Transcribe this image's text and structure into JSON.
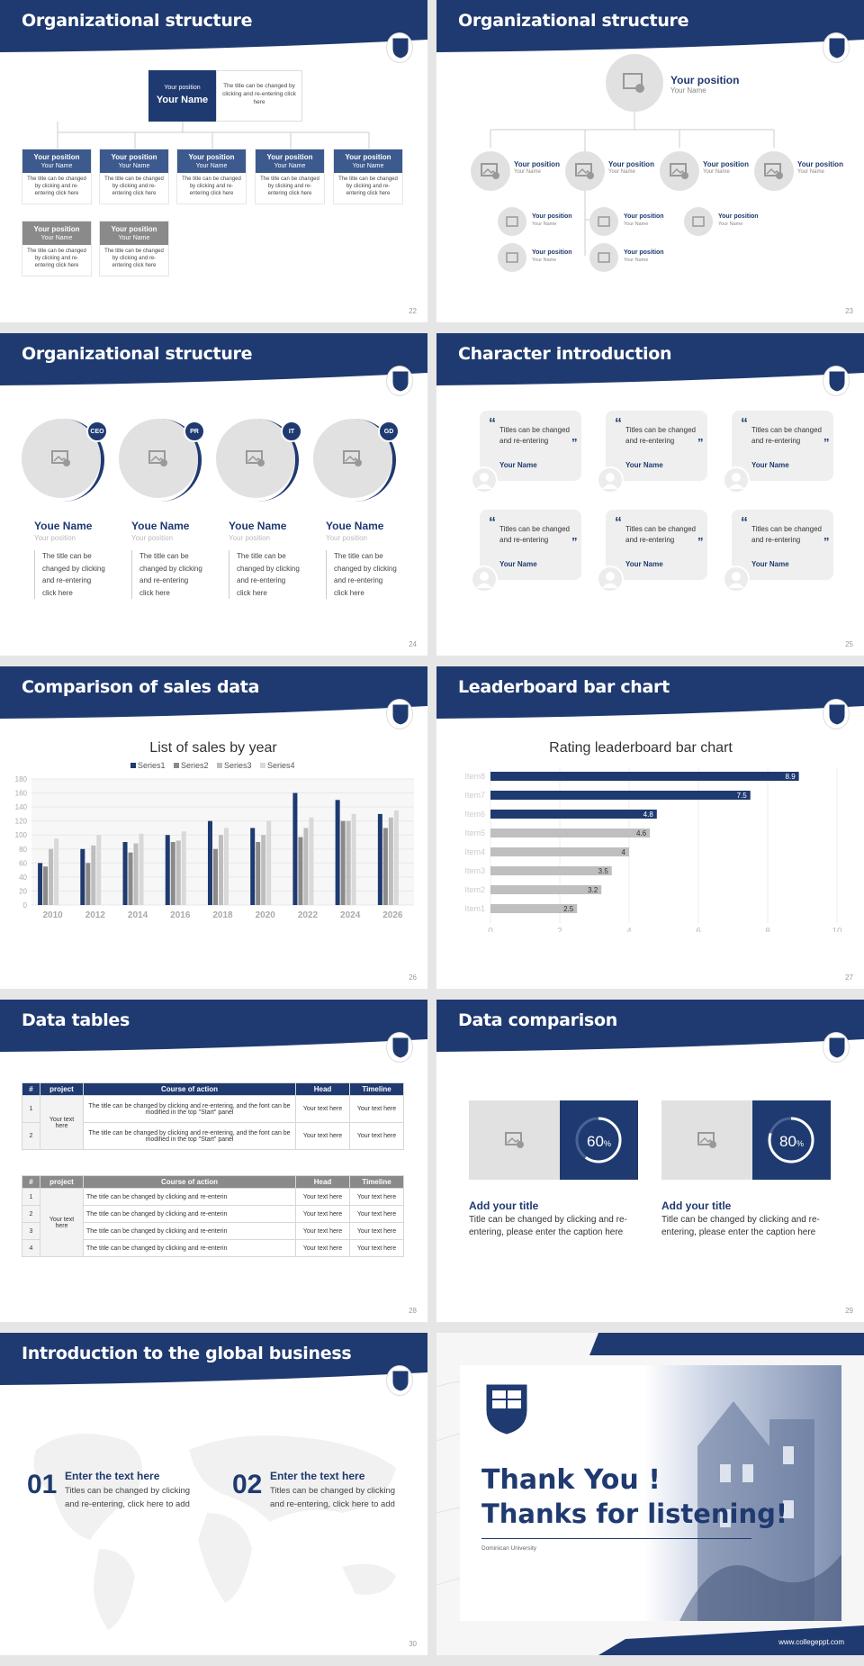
{
  "org1": {
    "title": "Organizational structure",
    "top_position": "Your position",
    "top_name": "Your Name",
    "top_desc": "The title can be changed by clicking and re-entering click here",
    "position": "Your position",
    "name": "Your Name",
    "desc": "The title can be changed by clicking and re-entering click here",
    "page": "22"
  },
  "org2": {
    "title": "Organizational structure",
    "top_position": "Your position",
    "top_name": "Your Name",
    "position": "Your position",
    "name": "Your Name",
    "page": "23"
  },
  "org3": {
    "title": "Organizational structure",
    "badges": [
      "CEO",
      "PR",
      "IT",
      "GD"
    ],
    "name": "Youe Name",
    "position": "Your position",
    "desc": "The title can be changed by clicking and re-entering click here",
    "page": "24"
  },
  "char": {
    "title": "Character introduction",
    "quote": "Titles can be changed and re-entering",
    "name": "Your Name",
    "page": "25"
  },
  "sales": {
    "title": "Comparison of sales data",
    "page": "26"
  },
  "leader": {
    "title": "Leaderboard bar chart",
    "page": "27"
  },
  "tables": {
    "title": "Data tables",
    "headers": [
      "#",
      "project",
      "Course of action",
      "Head",
      "Timeline"
    ],
    "t1_project": "Your text here",
    "t1_rows": [
      {
        "n": "1",
        "action": "The title can be changed by clicking and re-entering, and the font can be modified in the top \"Start\" panel",
        "head": "Your text here",
        "time": "Your text here"
      },
      {
        "n": "2",
        "action": "The title can be changed by clicking and re-entering, and the font can be modified in the top \"Start\" panel",
        "head": "Your text here",
        "time": "Your text here"
      }
    ],
    "t2_project": "Your text here",
    "t2_rows": [
      {
        "n": "1",
        "action": "The title can be changed by clicking and re-enterin",
        "head": "Your text here",
        "time": "Your text here"
      },
      {
        "n": "2",
        "action": "The title can be changed by clicking and re-enterin",
        "head": "Your text here",
        "time": "Your text here"
      },
      {
        "n": "3",
        "action": "The title can be changed by clicking and re-enterin",
        "head": "Your text here",
        "time": "Your text here"
      },
      {
        "n": "4",
        "action": "The title can be changed by clicking and re-enterin",
        "head": "Your text here",
        "time": "Your text here"
      }
    ],
    "page": "28"
  },
  "compare": {
    "title": "Data comparison",
    "items": [
      {
        "pct": "60",
        "unit": "%",
        "value": 0.6,
        "head": "Add your title",
        "desc": "Title can be changed by clicking and re-entering, please enter the caption here"
      },
      {
        "pct": "80",
        "unit": "%",
        "value": 0.8,
        "head": "Add your title",
        "desc": "Title can be changed by clicking and re-entering, please enter the caption here"
      }
    ],
    "page": "29"
  },
  "global": {
    "title": "Introduction to the global business",
    "items": [
      {
        "num": "01",
        "head": "Enter the text here",
        "desc": "Titles can be changed by clicking and re-entering, click here to add"
      },
      {
        "num": "02",
        "head": "Enter the text here",
        "desc": "Titles can be changed by clicking and re-entering, click here to add"
      }
    ],
    "page": "30"
  },
  "thanks": {
    "line1": "Thank You !",
    "line2": "Thanks for listening!",
    "university": "Dominican University",
    "url": "www.collegeppt.com"
  },
  "chart_data": [
    {
      "type": "bar",
      "title": "List of sales by year",
      "categories": [
        "2010",
        "2012",
        "2014",
        "2016",
        "2018",
        "2020",
        "2022",
        "2024",
        "2026"
      ],
      "series": [
        {
          "name": "Series1",
          "values": [
            60,
            80,
            90,
            100,
            120,
            110,
            160,
            150,
            130
          ]
        },
        {
          "name": "Series2",
          "values": [
            55,
            60,
            75,
            90,
            80,
            90,
            97,
            120,
            110
          ]
        },
        {
          "name": "Series3",
          "values": [
            80,
            85,
            88,
            92,
            100,
            100,
            110,
            120,
            125
          ]
        },
        {
          "name": "Series4",
          "values": [
            95,
            100,
            102,
            105,
            110,
            120,
            125,
            130,
            135
          ]
        }
      ],
      "ylim": [
        0,
        180
      ],
      "yticks": [
        "0",
        "20",
        "40",
        "60",
        "80",
        "100",
        "120",
        "140",
        "160",
        "180"
      ],
      "legend": "top"
    },
    {
      "type": "bar",
      "orientation": "horizontal",
      "title": "Rating leaderboard bar chart",
      "categories": [
        "Item8",
        "Item7",
        "Item6",
        "Item5",
        "Item4",
        "Item3",
        "Item2",
        "Item1"
      ],
      "values": [
        8.9,
        7.5,
        4.8,
        4.6,
        4,
        3.5,
        3.2,
        2.5
      ],
      "labels": [
        "8.9",
        "7.5",
        "4.8",
        "4.6",
        "4",
        "3.5",
        "3.2",
        "2.5"
      ],
      "xlim": [
        0,
        10
      ],
      "xticks": [
        "0",
        "2",
        "4",
        "6",
        "8",
        "10"
      ]
    }
  ],
  "colors": {
    "navy": "#1f3a70",
    "gray": "#8a8a8a",
    "light": "#e2e1e1"
  }
}
